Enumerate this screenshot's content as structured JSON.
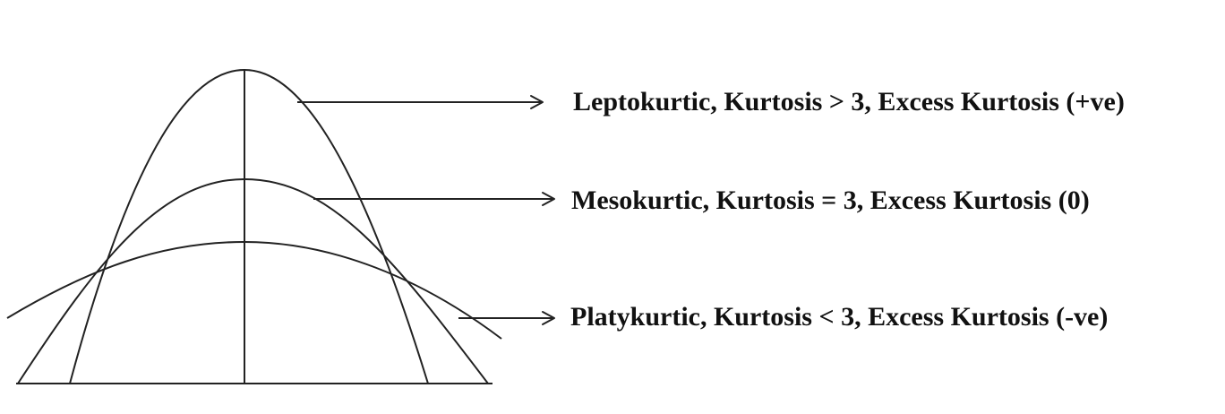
{
  "labels": {
    "leptokurtic": "Leptokurtic, Kurtosis > 3, Excess Kurtosis (+ve)",
    "mesokurtic": "Mesokurtic, Kurtosis = 3, Excess Kurtosis (0)",
    "platykurtic": "Platykurtic, Kurtosis < 3, Excess Kurtosis (-ve)"
  },
  "colors": {
    "line": "#222222",
    "text": "#111111",
    "background": "#ffffff"
  }
}
